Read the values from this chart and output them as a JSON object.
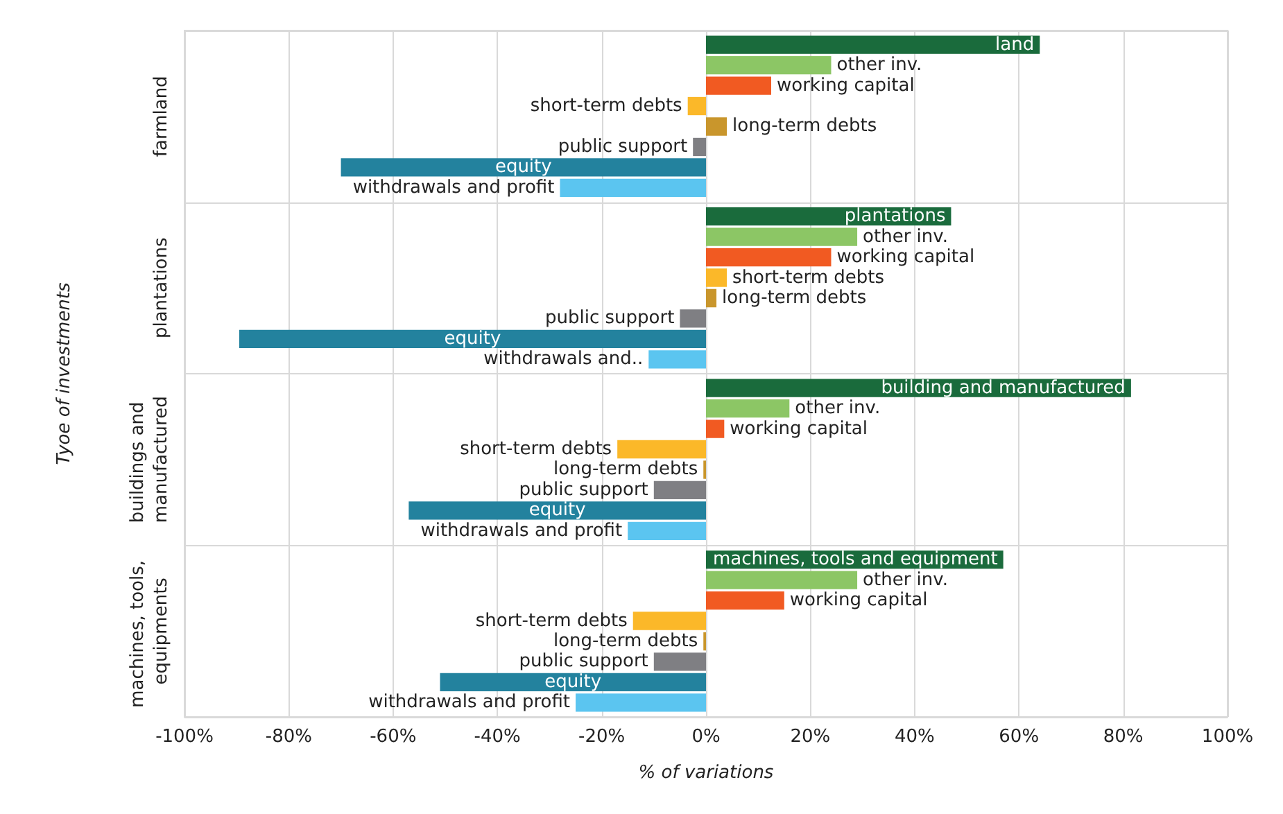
{
  "chart_data": {
    "type": "bar",
    "orientation": "horizontal",
    "xlabel": "% of variations",
    "ylabel": "Tyoe of investments",
    "categories": [
      "farmland",
      "plantations",
      "buildings and manufactured",
      "machines, tools, equipments"
    ],
    "xlim": [
      -100,
      100
    ],
    "xticks": [
      {
        "value": -100,
        "label": "-100%"
      },
      {
        "value": -80,
        "label": "-80%"
      },
      {
        "value": -60,
        "label": "-60%"
      },
      {
        "value": -40,
        "label": "-40%"
      },
      {
        "value": -20,
        "label": "-20%"
      },
      {
        "value": 0,
        "label": "0%"
      },
      {
        "value": 20,
        "label": "20%"
      },
      {
        "value": 40,
        "label": "40%"
      },
      {
        "value": 60,
        "label": "60%"
      },
      {
        "value": 80,
        "label": "80%"
      },
      {
        "value": 100,
        "label": "100%"
      }
    ],
    "grid": true,
    "series": [
      {
        "color": "#1a6b3c",
        "values": [
          64,
          47,
          81.5,
          57
        ],
        "value_labels": [
          "land",
          "plantations",
          "building and manufactured",
          "machines, tools and equipment"
        ]
      },
      {
        "color": "#8cc665",
        "values": [
          24,
          29,
          16,
          29
        ],
        "value_labels": [
          "other inv.",
          "other inv.",
          "other inv.",
          "other inv."
        ]
      },
      {
        "color": "#f15a22",
        "values": [
          12.5,
          24,
          3.5,
          15
        ],
        "value_labels": [
          "working capital",
          "working capital",
          "working capital",
          "working capital"
        ]
      },
      {
        "color": "#fbb829",
        "values": [
          -3.5,
          4,
          -17,
          -14
        ],
        "value_labels": [
          "short-term debts",
          "short-term debts",
          "short-term debts",
          "short-term debts"
        ]
      },
      {
        "color": "#c9962c",
        "values": [
          4,
          2,
          -0.5,
          -0.5
        ],
        "value_labels": [
          "long-term debts",
          "long-term debts",
          "long-term debts",
          "long-term debts"
        ]
      },
      {
        "color": "#7f7f83",
        "values": [
          -2.5,
          -5,
          -10,
          -10
        ],
        "value_labels": [
          "public support",
          "public support",
          "public support",
          "public support"
        ]
      },
      {
        "color": "#23829e",
        "values": [
          -70,
          -89.5,
          -57,
          -51
        ],
        "value_labels": [
          "equity",
          "equity",
          "equity",
          "equity"
        ]
      },
      {
        "color": "#5bc5f0",
        "values": [
          -28,
          -11,
          -15,
          -25
        ],
        "value_labels": [
          "withdrawals and profit",
          "withdrawals and..",
          "withdrawals and profit",
          "withdrawals and profit"
        ]
      }
    ]
  }
}
